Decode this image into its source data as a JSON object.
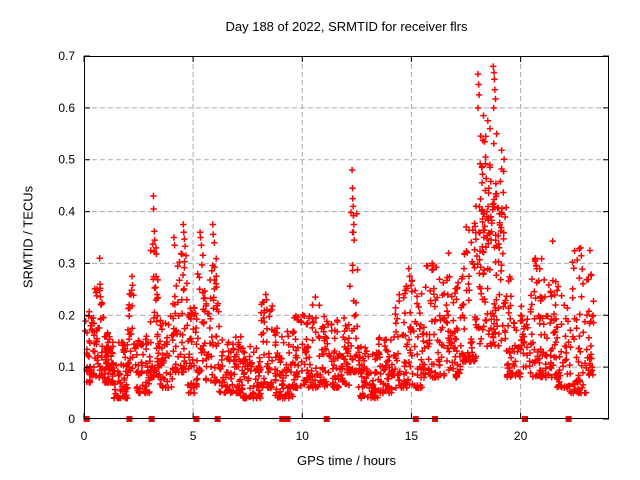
{
  "colors": {
    "marker": "#ff0000",
    "grid": "#aaaaaa",
    "axis": "#000000",
    "background": "#ffffff",
    "text": "#000000"
  },
  "chart_data": {
    "type": "scatter",
    "marker": "plus",
    "title": "Day 188 of 2022, SRMTID for receiver flrs",
    "xlabel": "GPS time / hours",
    "ylabel": "SRMTID / TECUs",
    "xlim": [
      0,
      24.05
    ],
    "ylim": [
      0,
      0.7
    ],
    "grid": "dashed",
    "legend": "none",
    "x_ticks": [
      0,
      5,
      10,
      15,
      20
    ],
    "x_tick_labels": [
      "0",
      "5",
      "10",
      "15",
      "20"
    ],
    "y_ticks": [
      0,
      0.1,
      0.2,
      0.3,
      0.4,
      0.5,
      0.6,
      0.7
    ],
    "y_tick_labels": [
      "0",
      "0.1",
      "0.2",
      "0.3",
      "0.4",
      "0.5",
      "0.6",
      "0.7"
    ],
    "seed": 188,
    "representation": "dense 24h scatter (~30s cadence) summarized as envelope bands [t0,t1,ylo,yhi,count,bottom_bias] plus explicit peak points",
    "bands": [
      [
        0.05,
        0.35,
        0.07,
        0.22,
        28,
        2.0
      ],
      [
        0.35,
        0.95,
        0.08,
        0.26,
        55,
        2.0
      ],
      [
        0.95,
        1.35,
        0.07,
        0.17,
        65,
        1.8
      ],
      [
        1.35,
        2.0,
        0.04,
        0.15,
        60,
        1.8
      ],
      [
        2.0,
        2.35,
        0.09,
        0.26,
        28,
        1.6
      ],
      [
        2.35,
        3.0,
        0.05,
        0.16,
        50,
        1.8
      ],
      [
        3.0,
        3.45,
        0.08,
        0.34,
        48,
        2.2
      ],
      [
        3.45,
        4.05,
        0.06,
        0.2,
        45,
        1.8
      ],
      [
        4.05,
        4.75,
        0.09,
        0.32,
        60,
        2.2
      ],
      [
        4.75,
        5.2,
        0.05,
        0.22,
        42,
        1.8
      ],
      [
        5.2,
        5.55,
        0.09,
        0.33,
        30,
        2.2
      ],
      [
        5.55,
        6.2,
        0.07,
        0.31,
        52,
        2.2
      ],
      [
        6.2,
        7.2,
        0.05,
        0.16,
        75,
        1.6
      ],
      [
        7.2,
        8.1,
        0.04,
        0.14,
        75,
        1.6
      ],
      [
        8.1,
        8.65,
        0.06,
        0.23,
        45,
        1.8
      ],
      [
        8.65,
        9.6,
        0.04,
        0.18,
        75,
        1.6
      ],
      [
        9.6,
        10.25,
        0.06,
        0.21,
        52,
        1.8
      ],
      [
        10.25,
        11.05,
        0.06,
        0.23,
        62,
        1.8
      ],
      [
        11.05,
        12.15,
        0.06,
        0.2,
        85,
        1.7
      ],
      [
        12.15,
        12.55,
        0.09,
        0.4,
        32,
        2.0
      ],
      [
        12.55,
        13.5,
        0.04,
        0.14,
        75,
        1.5
      ],
      [
        13.5,
        14.25,
        0.05,
        0.16,
        58,
        1.6
      ],
      [
        14.25,
        14.85,
        0.06,
        0.26,
        48,
        2.0
      ],
      [
        14.85,
        15.55,
        0.06,
        0.28,
        52,
        2.0
      ],
      [
        15.55,
        16.3,
        0.08,
        0.3,
        58,
        2.0
      ],
      [
        16.3,
        17.35,
        0.08,
        0.28,
        80,
        1.7
      ],
      [
        17.35,
        17.95,
        0.11,
        0.38,
        55,
        1.8
      ],
      [
        17.95,
        19.35,
        0.14,
        0.42,
        95,
        1.3
      ],
      [
        18.1,
        19.25,
        0.33,
        0.55,
        70,
        1.5
      ],
      [
        19.35,
        20.0,
        0.08,
        0.28,
        48,
        1.8
      ],
      [
        20.0,
        20.45,
        0.1,
        0.22,
        26,
        1.6
      ],
      [
        20.45,
        21.05,
        0.08,
        0.31,
        58,
        1.8
      ],
      [
        21.05,
        21.65,
        0.08,
        0.28,
        48,
        1.8
      ],
      [
        21.65,
        22.25,
        0.06,
        0.26,
        46,
        1.8
      ],
      [
        22.25,
        23.0,
        0.05,
        0.33,
        56,
        2.0
      ],
      [
        23.0,
        23.35,
        0.08,
        0.28,
        30,
        1.6
      ]
    ],
    "peak_points": [
      [
        0.72,
        0.31
      ],
      [
        0.74,
        0.252
      ],
      [
        2.2,
        0.275
      ],
      [
        2.22,
        0.258
      ],
      [
        3.18,
        0.43
      ],
      [
        3.19,
        0.405
      ],
      [
        3.22,
        0.362
      ],
      [
        3.24,
        0.345
      ],
      [
        3.3,
        0.33
      ],
      [
        4.12,
        0.35
      ],
      [
        4.15,
        0.335
      ],
      [
        4.55,
        0.375
      ],
      [
        4.57,
        0.36
      ],
      [
        4.6,
        0.347
      ],
      [
        4.63,
        0.333
      ],
      [
        5.32,
        0.36
      ],
      [
        5.34,
        0.35
      ],
      [
        5.38,
        0.335
      ],
      [
        5.9,
        0.375
      ],
      [
        5.92,
        0.356
      ],
      [
        5.97,
        0.34
      ],
      [
        8.33,
        0.24
      ],
      [
        8.36,
        0.23
      ],
      [
        10.6,
        0.235
      ],
      [
        12.28,
        0.48
      ],
      [
        12.3,
        0.445
      ],
      [
        12.31,
        0.425
      ],
      [
        12.33,
        0.41
      ],
      [
        12.34,
        0.392
      ],
      [
        12.36,
        0.375
      ],
      [
        12.3,
        0.36
      ],
      [
        12.38,
        0.345
      ],
      [
        14.88,
        0.29
      ],
      [
        14.92,
        0.275
      ],
      [
        15.95,
        0.3
      ],
      [
        15.98,
        0.288
      ],
      [
        16.7,
        0.32
      ],
      [
        18.05,
        0.665
      ],
      [
        18.08,
        0.645
      ],
      [
        18.1,
        0.625
      ],
      [
        18.05,
        0.6
      ],
      [
        18.3,
        0.585
      ],
      [
        18.4,
        0.545
      ],
      [
        18.5,
        0.575
      ],
      [
        18.6,
        0.56
      ],
      [
        18.75,
        0.68
      ],
      [
        18.78,
        0.668
      ],
      [
        18.8,
        0.655
      ],
      [
        18.82,
        0.635
      ],
      [
        18.85,
        0.617
      ],
      [
        18.77,
        0.6
      ],
      [
        18.9,
        0.55
      ],
      [
        20.68,
        0.31
      ],
      [
        20.72,
        0.295
      ],
      [
        21.47,
        0.343
      ],
      [
        22.75,
        0.33
      ],
      [
        22.78,
        0.315
      ],
      [
        23.18,
        0.325
      ]
    ],
    "baseline_squares_hours": [
      0.12,
      2.08,
      3.1,
      5.15,
      6.12,
      9.08,
      9.32,
      11.12,
      15.2,
      16.08,
      20.2,
      22.2
    ]
  }
}
